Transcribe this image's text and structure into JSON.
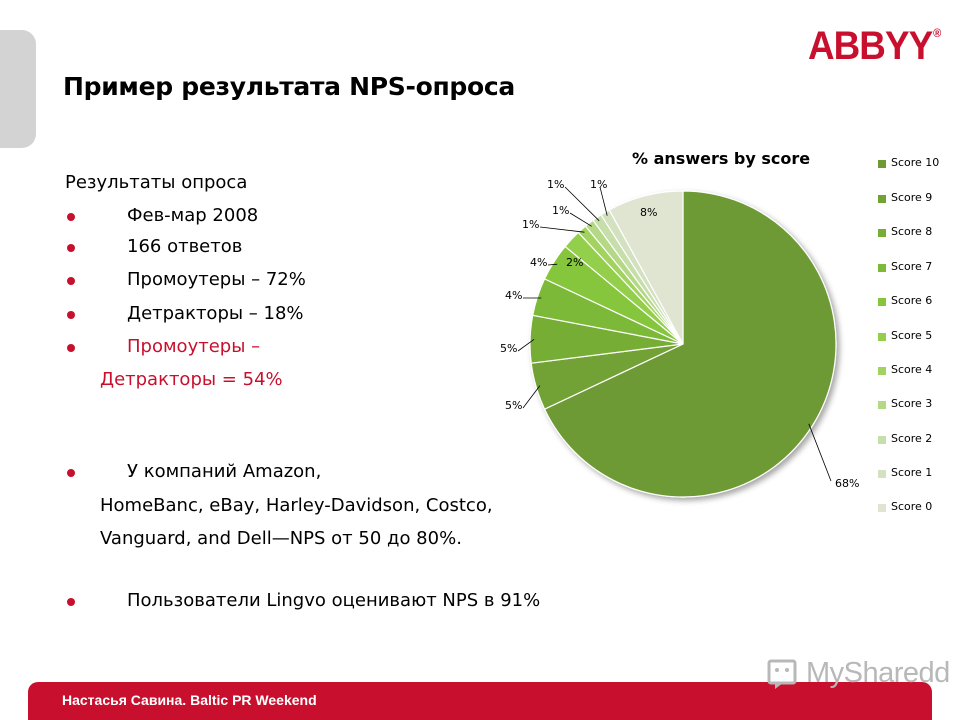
{
  "brand": {
    "logo": "ABBYY",
    "accent": "#c8102e"
  },
  "slide": {
    "title": "Пример результата NPS-опроса",
    "heading": "Результаты опроса",
    "bullets": [
      {
        "text": "Фев-мар 2008"
      },
      {
        "text": "166 ответов"
      },
      {
        "text": "Промоутеры – 72%"
      },
      {
        "text": "Детракторы – 18%"
      },
      {
        "text": "Промоутеры –",
        "cont": "Детракторы = 54%"
      },
      {
        "text": "У компаний Amazon,",
        "cont": "HomeBanc, eBay, Harley-Davidson, Costco,",
        "cont2": "Vanguard, and Dell—NPS  от 50 до 80%."
      },
      {
        "text": "Пользователи Lingvo оценивают NPS в 91%"
      }
    ]
  },
  "footer": {
    "text": "Настасья Савина. Baltic PR Weekend",
    "watermark": "MySharedd"
  },
  "chart_data": {
    "type": "pie",
    "title": "% answers by score",
    "categories": [
      "Score 10",
      "Score 9",
      "Score 8",
      "Score 7",
      "Score 6",
      "Score 5",
      "Score 4",
      "Score 3",
      "Score 2",
      "Score 1",
      "Score 0"
    ],
    "values": [
      68,
      5,
      5,
      4,
      4,
      2,
      1,
      1,
      1,
      1,
      8
    ],
    "data_labels": [
      "68%",
      "5%",
      "5%",
      "4%",
      "4%",
      "2%",
      "1%",
      "1%",
      "1%",
      "1%",
      "8%"
    ],
    "colors": [
      "#6e9a34",
      "#72a234",
      "#76ad35",
      "#7cb937",
      "#86c63c",
      "#93cf4b",
      "#a2d25f",
      "#b4d885",
      "#c6deaa",
      "#d4e1c1",
      "#dfe5d1"
    ],
    "legend": "right"
  }
}
